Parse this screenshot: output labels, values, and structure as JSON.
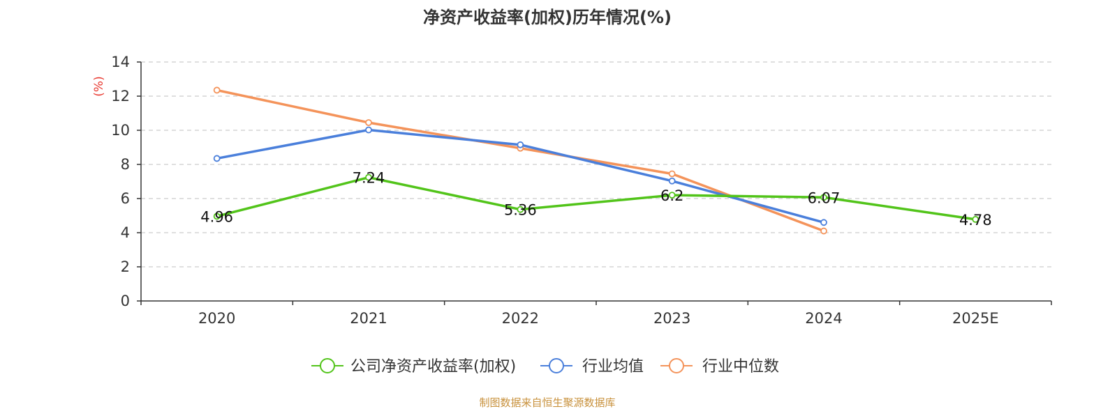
{
  "chart_data": {
    "type": "line",
    "title": "净资产收益率(加权)历年情况(%)",
    "ylabel": "(%)",
    "xlabel": "",
    "ylim": [
      0,
      14
    ],
    "yticks": [
      0,
      2,
      4,
      6,
      8,
      10,
      12,
      14
    ],
    "grid": true,
    "legend_position": "bottom",
    "categories": [
      "2020",
      "2021",
      "2022",
      "2023",
      "2024",
      "2025E"
    ],
    "series": [
      {
        "name": "公司净资产收益率(加权)",
        "color": "#52c41a",
        "values": [
          4.96,
          7.24,
          5.36,
          6.2,
          6.07,
          4.78
        ],
        "labels": [
          "4.96",
          "7.24",
          "5.36",
          "6.2",
          "6.07",
          "4.78"
        ]
      },
      {
        "name": "行业均值",
        "color": "#4a7fdb",
        "values": [
          8.35,
          10.02,
          9.15,
          7.03,
          4.6,
          null
        ]
      },
      {
        "name": "行业中位数",
        "color": "#f4935a",
        "values": [
          12.35,
          10.45,
          8.95,
          7.45,
          4.1,
          null
        ]
      }
    ],
    "source": "制图数据来自恒生聚源数据库"
  }
}
